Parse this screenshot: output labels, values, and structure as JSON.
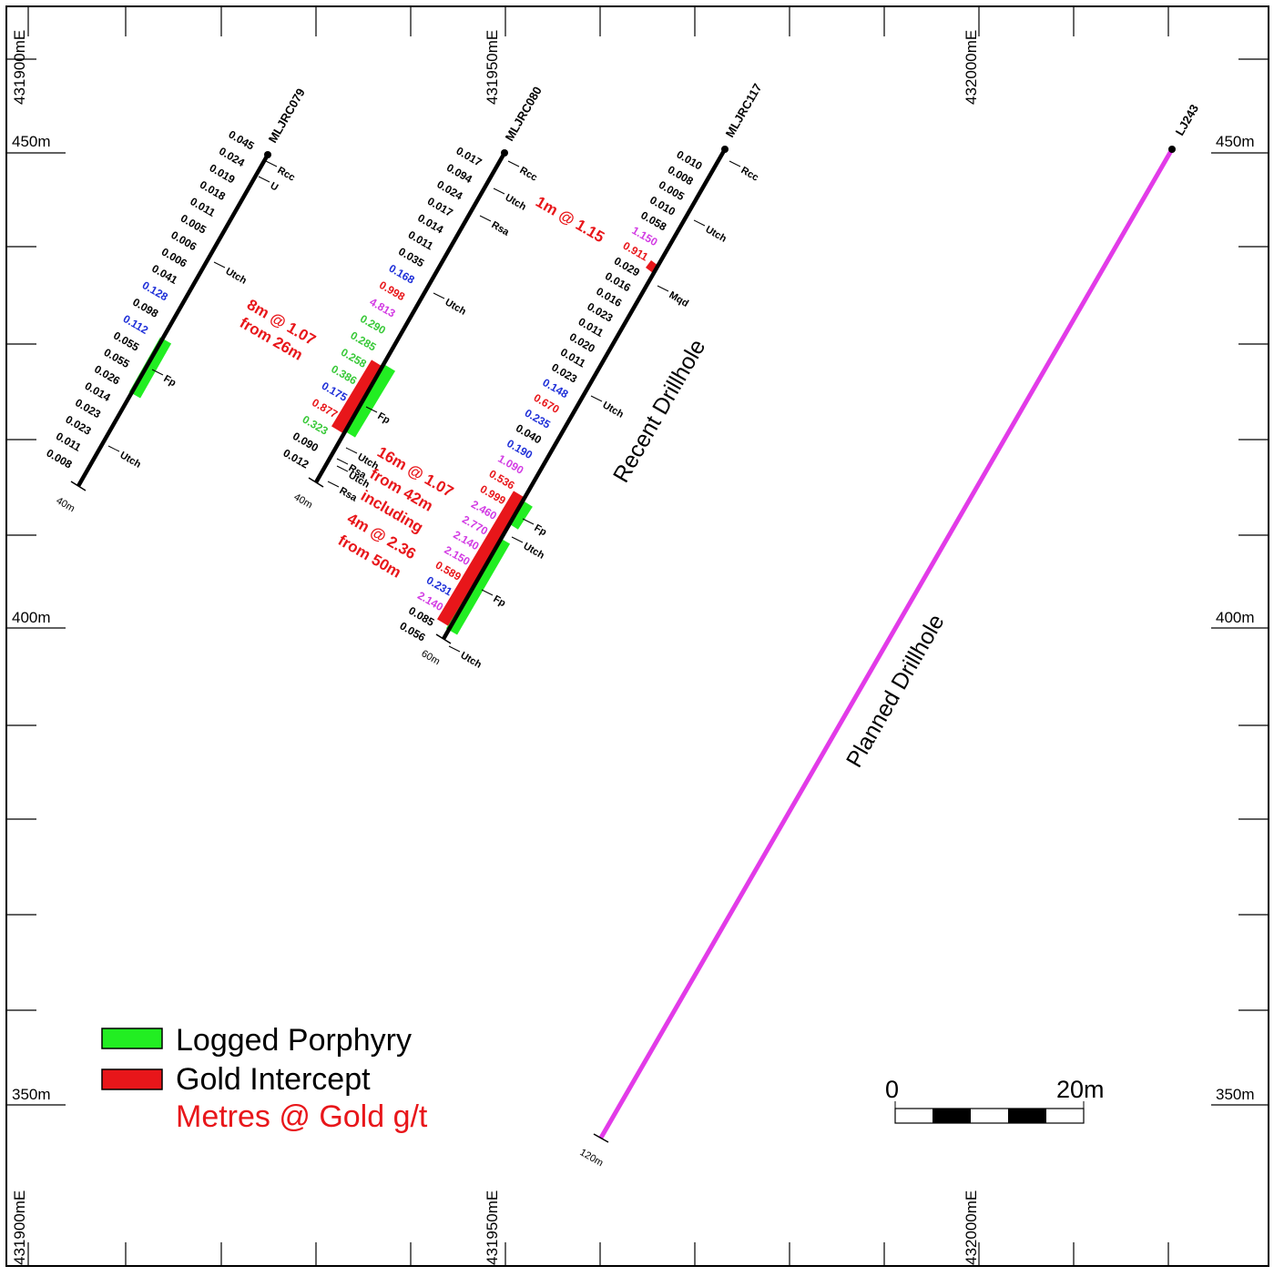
{
  "grid": {
    "eastings": [
      "431900mE",
      "431950mE",
      "432000mE"
    ],
    "elevations": [
      "450m",
      "400m",
      "350m"
    ]
  },
  "colors": {
    "porphyry": "#22ee22",
    "intercept": "#e8161a",
    "planned": "#e23be8",
    "low": "#000000",
    "mid": "#1e2fd8",
    "high": "#d23be3",
    "hiGreen": "#37c837"
  },
  "drillholes": [
    {
      "id": "MLJRC079",
      "end_depth": "40m",
      "assays": [
        "0.045",
        "0.024",
        "0.019",
        "0.018",
        "0.011",
        "0.005",
        "0.006",
        "0.006",
        "0.041",
        "0.128",
        "0.098",
        "0.112",
        "0.055",
        "0.055",
        "0.026",
        "0.014",
        "0.023",
        "0.023",
        "0.011",
        "0.008"
      ],
      "geology": [
        "Rcc",
        "U",
        "Utch",
        "Fp",
        "Utch"
      ]
    },
    {
      "id": "MLJRC080",
      "end_depth": "40m",
      "assays": [
        "0.017",
        "0.094",
        "0.024",
        "0.017",
        "0.014",
        "0.011",
        "0.035",
        "0.168",
        "0.998",
        "4.813",
        "0.290",
        "0.285",
        "0.258",
        "0.386",
        "0.175",
        "0.877",
        "0.323",
        "0.090",
        "0.012"
      ],
      "geology": [
        "Rcc",
        "Utch",
        "Rsa",
        "Utch",
        "Fp",
        "Utch",
        "Rsa",
        "Utch",
        "Rsa"
      ],
      "intercept": {
        "line1": "8m @ 1.07",
        "line2": "from 26m"
      }
    },
    {
      "id": "MLJRC117",
      "end_depth": "60m",
      "assays": [
        "0.010",
        "0.008",
        "0.005",
        "0.010",
        "0.058",
        "1.150",
        "0.911",
        "0.029",
        "0.016",
        "0.016",
        "0.023",
        "0.011",
        "0.020",
        "0.011",
        "0.023",
        "0.148",
        "0.670",
        "0.235",
        "0.040",
        "0.190",
        "1.090",
        "0.536",
        "0.999",
        "2.460",
        "2.770",
        "2.140",
        "2.150",
        "0.589",
        "0.231",
        "2.140",
        "0.085",
        "0.056"
      ],
      "geology": [
        "Rcc",
        "Utch",
        "Mqd",
        "Utch",
        "Fp",
        "Utch",
        "Fp",
        "Utch"
      ],
      "intercepts": [
        {
          "line1": "1m @ 1.15"
        },
        {
          "line1": "16m @ 1.07",
          "line2": "from 42m",
          "line3": "including",
          "line4": "4m @ 2.36",
          "line5": "from 50m"
        }
      ]
    },
    {
      "id": "LJ243",
      "end_depth": "120m"
    }
  ],
  "annotations": {
    "recent": "Recent Drillhole",
    "planned": "Planned Drillhole"
  },
  "legend": {
    "porphyry": "Logged Porphyry",
    "gold": "Gold Intercept",
    "metres": "Metres @ Gold g/t"
  },
  "scalebar": {
    "min": "0",
    "max": "20m"
  }
}
